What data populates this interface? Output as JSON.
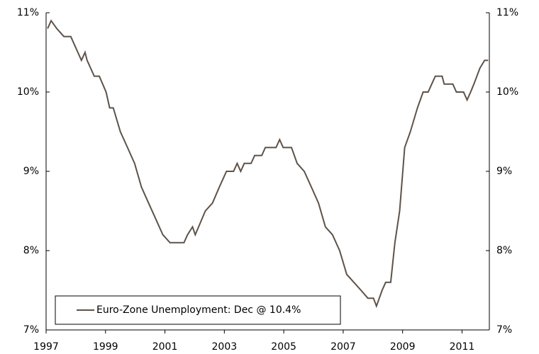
{
  "chart_data": {
    "type": "line",
    "x": [
      1997.05,
      1997.17,
      1997.36,
      1997.6,
      1997.83,
      1997.95,
      1998.07,
      1998.19,
      1998.31,
      1998.38,
      1998.62,
      1998.79,
      1999.02,
      1999.14,
      1999.26,
      1999.5,
      1999.74,
      1999.98,
      2000.21,
      2000.45,
      2000.69,
      2000.93,
      2001.17,
      2001.64,
      2001.76,
      2001.93,
      2002.02,
      2002.36,
      2002.6,
      2002.83,
      2003.07,
      2003.31,
      2003.43,
      2003.55,
      2003.67,
      2003.9,
      2004.02,
      2004.26,
      2004.38,
      2004.74,
      2004.86,
      2004.98,
      2005.26,
      2005.45,
      2005.69,
      2005.93,
      2006.17,
      2006.4,
      2006.64,
      2006.88,
      2007.12,
      2007.36,
      2007.6,
      2007.83,
      2008.02,
      2008.12,
      2008.31,
      2008.43,
      2008.6,
      2008.74,
      2008.9,
      2009.07,
      2009.26,
      2009.5,
      2009.69,
      2009.86,
      2009.98,
      2010.1,
      2010.33,
      2010.4,
      2010.69,
      2010.81,
      2011.05,
      2011.17,
      2011.29,
      2011.4,
      2011.6,
      2011.76,
      2011.88
    ],
    "series": [
      {
        "name": "Euro-Zone Unemployment: Dec @ 10.4%",
        "color": "#5e5248",
        "values": [
          10.8,
          10.9,
          10.8,
          10.7,
          10.7,
          10.6,
          10.5,
          10.4,
          10.5,
          10.4,
          10.2,
          10.2,
          10.0,
          9.8,
          9.8,
          9.5,
          9.3,
          9.1,
          8.8,
          8.6,
          8.4,
          8.2,
          8.1,
          8.1,
          8.2,
          8.3,
          8.2,
          8.5,
          8.6,
          8.8,
          9.0,
          9.0,
          9.1,
          9.0,
          9.1,
          9.1,
          9.2,
          9.2,
          9.3,
          9.3,
          9.4,
          9.3,
          9.3,
          9.1,
          9.0,
          8.8,
          8.6,
          8.3,
          8.2,
          8.0,
          7.7,
          7.6,
          7.5,
          7.4,
          7.4,
          7.3,
          7.5,
          7.6,
          7.6,
          8.1,
          8.5,
          9.3,
          9.5,
          9.8,
          10.0,
          10.0,
          10.1,
          10.2,
          10.2,
          10.1,
          10.1,
          10.0,
          10.0,
          9.9,
          10.0,
          10.1,
          10.3,
          10.4,
          10.4
        ]
      }
    ],
    "xlim": [
      1997,
      2011.92
    ],
    "xticks": [
      1997,
      1999,
      2001,
      2003,
      2005,
      2007,
      2009,
      2011
    ],
    "ylim": [
      7,
      11
    ],
    "yticks": [
      {
        "value": 7,
        "label": "7%"
      },
      {
        "value": 8,
        "label": "8%"
      },
      {
        "value": 9,
        "label": "9%"
      },
      {
        "value": 10,
        "label": "10%"
      },
      {
        "value": 11,
        "label": "11%"
      }
    ],
    "y2lim": [
      7,
      11
    ],
    "y2ticks": [
      {
        "value": 7,
        "label": "7%"
      },
      {
        "value": 8,
        "label": "8%"
      },
      {
        "value": 9,
        "label": "9%"
      },
      {
        "value": 10,
        "label": "10%"
      },
      {
        "value": 11,
        "label": "11%"
      }
    ],
    "legend": "lower-left"
  }
}
